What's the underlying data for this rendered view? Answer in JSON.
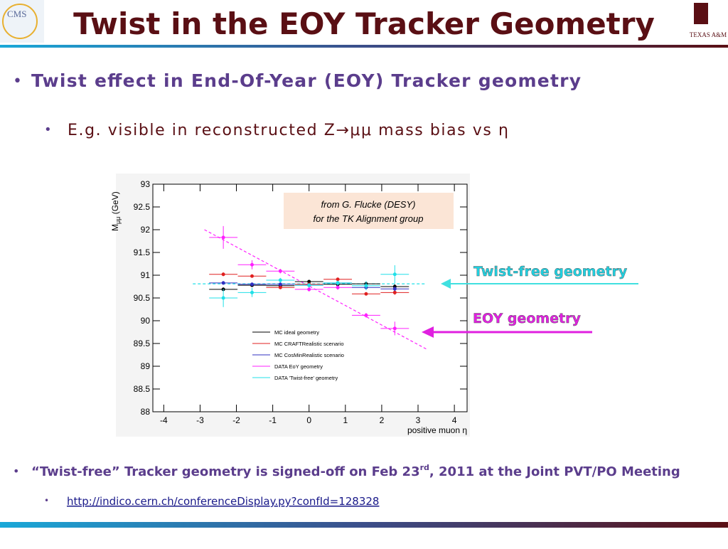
{
  "header": {
    "title": "Twist in the EOY Tracker Geometry",
    "left_logo": "CMS",
    "right_logo": "TEXAS A&M"
  },
  "bullets": [
    {
      "text": "Twist effect in End-Of-Year (EOY) Tracker geometry"
    },
    {
      "text": "E.g. visible in reconstructed Z→μμ mass bias vs η"
    },
    {
      "text": "“Twist-free” Tracker geometry is signed-off on Feb 23",
      "sup": "rd",
      "tail": ", 2011 at the Joint PVT/PO Meeting"
    },
    {
      "text": "http://indico.cern.ch/conferenceDisplay.py?confId=128328"
    }
  ],
  "annotations": {
    "twist_free": "Twist-free geometry",
    "eoy": "EOY geometry",
    "credit": [
      "from G. Flucke (DESY)",
      "for the TK Alignment group"
    ]
  },
  "chart_data": {
    "type": "errorbar",
    "x_label": "positive muon η",
    "y_label": [
      "M",
      "μμ",
      " (GeV)"
    ],
    "xlim": [
      -4.3,
      4.35
    ],
    "ylim": [
      88,
      93
    ],
    "xticks": [
      -4,
      -3,
      -2,
      -1,
      0,
      1,
      2,
      3,
      4
    ],
    "yticks": [
      88,
      88.5,
      89,
      89.5,
      90,
      90.5,
      91,
      91.5,
      92,
      92.5,
      93
    ],
    "x": [
      -2.36,
      -1.57,
      -0.79,
      0,
      0.79,
      1.57,
      2.36
    ],
    "xerr": 0.39,
    "series": [
      {
        "name": "MC ideal geometry",
        "color": "#000000",
        "values": [
          90.69,
          90.78,
          90.77,
          90.86,
          90.8,
          90.81,
          90.75
        ],
        "yerr": [
          0.04,
          0.03,
          0.03,
          0.03,
          0.03,
          0.03,
          0.05
        ]
      },
      {
        "name": "MC CRAFTRealistic scenario",
        "color": "#e02020",
        "values": [
          91.02,
          90.98,
          90.73,
          90.8,
          90.91,
          90.59,
          90.62
        ],
        "yerr": [
          0.04,
          0.03,
          0.03,
          0.03,
          0.03,
          0.03,
          0.05
        ]
      },
      {
        "name": "MC CosMinRealistic scenario",
        "color": "#3030c0",
        "values": [
          90.83,
          90.8,
          90.8,
          90.78,
          90.83,
          90.73,
          90.7
        ],
        "yerr": [
          0.04,
          0.03,
          0.03,
          0.03,
          0.03,
          0.03,
          0.05
        ]
      },
      {
        "name": "DATA EoY geometry",
        "color": "#ff20ff",
        "values": [
          91.83,
          91.23,
          91.09,
          90.69,
          90.73,
          90.12,
          89.83
        ],
        "yerr": [
          0.25,
          0.1,
          0.05,
          0.05,
          0.05,
          0.05,
          0.15
        ]
      },
      {
        "name": "DATA 'Twist-free' geometry",
        "color": "#20e0e8",
        "values": [
          90.5,
          90.62,
          90.89,
          90.78,
          90.83,
          90.77,
          91.02
        ],
        "yerr": [
          0.2,
          0.1,
          0.05,
          0.05,
          0.05,
          0.1,
          0.2
        ]
      }
    ],
    "fits": [
      {
        "color": "#ff20ff",
        "x": [
          -2.88,
          3.27
        ],
        "y": [
          92,
          89.36
        ]
      },
      {
        "color": "#20e0e8",
        "x": [
          -3.2,
          3.2
        ],
        "y": [
          90.81,
          90.81
        ]
      }
    ]
  }
}
